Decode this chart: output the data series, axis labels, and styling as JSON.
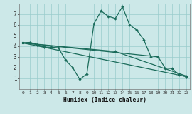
{
  "xlabel": "Humidex (Indice chaleur)",
  "bg_color": "#cce8e8",
  "grid_color": "#99cccc",
  "line_color": "#1a6b5a",
  "xlim": [
    -0.5,
    23.5
  ],
  "ylim": [
    0,
    8
  ],
  "xticks": [
    0,
    1,
    2,
    3,
    4,
    5,
    6,
    7,
    8,
    9,
    10,
    11,
    12,
    13,
    14,
    15,
    16,
    17,
    18,
    19,
    20,
    21,
    22,
    23
  ],
  "yticks": [
    1,
    2,
    3,
    4,
    5,
    6,
    7
  ],
  "series_zigzag": {
    "x": [
      0,
      1,
      2,
      3,
      4,
      5,
      6,
      7,
      8,
      9,
      10,
      11,
      12,
      13,
      14,
      15,
      16,
      17,
      18
    ],
    "y": [
      4.3,
      4.35,
      4.15,
      3.9,
      3.9,
      3.85,
      2.7,
      2.0,
      0.9,
      1.4,
      6.1,
      7.3,
      6.8,
      6.6,
      7.7,
      6.0,
      5.5,
      4.6,
      3.0
    ]
  },
  "series_short": {
    "x": [
      0,
      1,
      2,
      3
    ],
    "y": [
      4.3,
      4.35,
      4.15,
      3.9
    ]
  },
  "series_line1": {
    "x": [
      0,
      23
    ],
    "y": [
      4.3,
      1.15
    ]
  },
  "series_line2": {
    "x": [
      0,
      13,
      23
    ],
    "y": [
      4.3,
      3.5,
      1.2
    ]
  },
  "series_line3": {
    "x": [
      0,
      19,
      20,
      21,
      22,
      23
    ],
    "y": [
      4.3,
      3.0,
      1.95,
      1.9,
      1.3,
      1.15
    ]
  }
}
